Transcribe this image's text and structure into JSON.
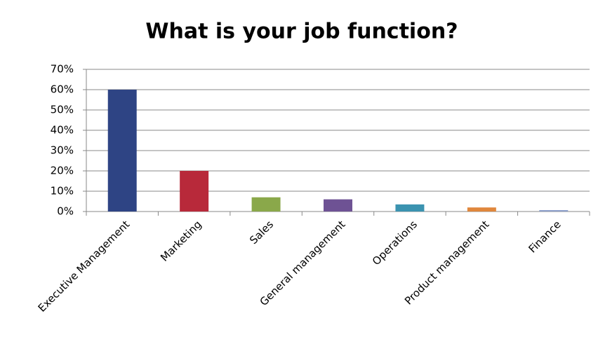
{
  "chart_data": {
    "type": "bar",
    "title": "What is your job function?",
    "categories": [
      "Executive Management",
      "Marketing",
      "Sales",
      "General management",
      "Operations",
      "Product management",
      "Finance"
    ],
    "series": [
      {
        "values": [
          60,
          20,
          7,
          6,
          3.5,
          2,
          0.7
        ]
      }
    ],
    "colors": [
      "#2e4484",
      "#b8293a",
      "#8aa84a",
      "#6e5294",
      "#3b93b0",
      "#e0873c",
      "#8c9fc9"
    ],
    "ylim": [
      0,
      70
    ],
    "yticks": [
      {
        "value": 0,
        "label": "0%"
      },
      {
        "value": 10,
        "label": "10%"
      },
      {
        "value": 20,
        "label": "20%"
      },
      {
        "value": 30,
        "label": "30%"
      },
      {
        "value": 40,
        "label": "40%"
      },
      {
        "value": 50,
        "label": "50%"
      },
      {
        "value": 60,
        "label": "60%"
      },
      {
        "value": 70,
        "label": "70%"
      }
    ],
    "grid": true
  }
}
